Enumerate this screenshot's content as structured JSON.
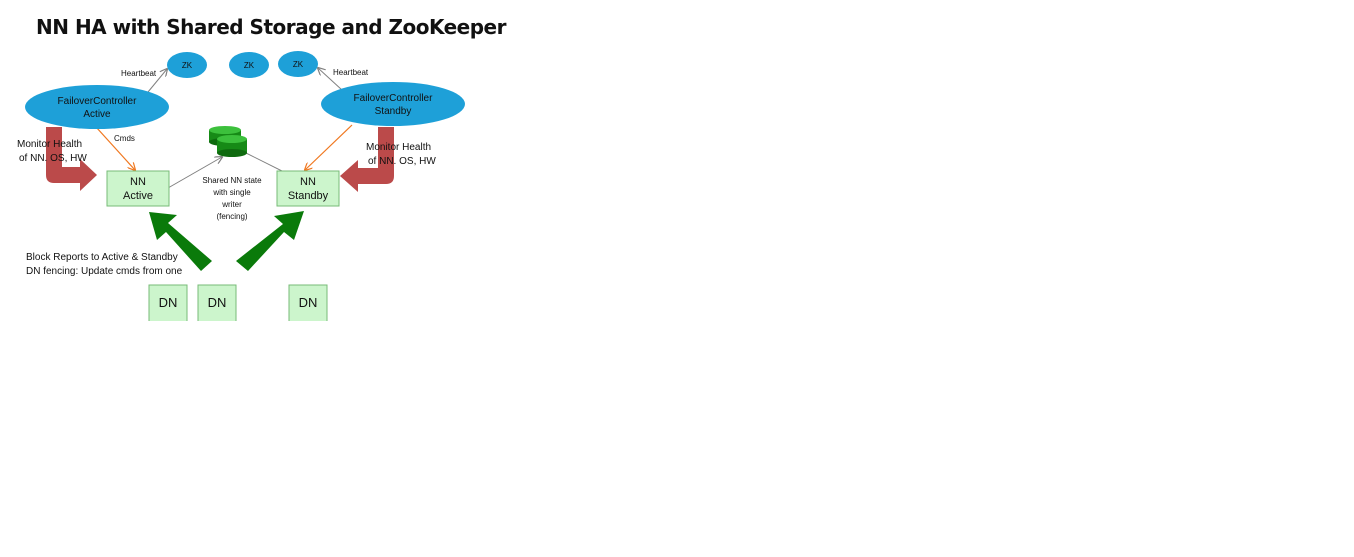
{
  "title": "NN HA with Shared Storage and ZooKeeper",
  "colors": {
    "ellipse_fill": "#1ea0d8",
    "box_fill": "#ccf5cc",
    "box_border": "#77bb77",
    "orange_arrow": "#f07820",
    "gray_arrow": "#808080",
    "red_arrow": "#bb4a4a",
    "green_arrow": "#0a7a0a",
    "storage": "#168a16"
  },
  "zk_nodes": [
    {
      "label": "ZK"
    },
    {
      "label": "ZK"
    },
    {
      "label": "ZK"
    }
  ],
  "failover_active": {
    "line1": "FailoverController",
    "line2": "Active"
  },
  "failover_standby": {
    "line1": "FailoverController",
    "line2": "Standby"
  },
  "heartbeat_left": "Heartbeat",
  "heartbeat_right": "Heartbeat",
  "cmds_label": "Cmds",
  "monitor_left": {
    "line1": "Monitor Health",
    "line2": "of NN. OS, HW"
  },
  "monitor_right": {
    "line1": "Monitor Health",
    "line2": "of NN. OS, HW"
  },
  "nn_active": {
    "line1": "NN",
    "line2": "Active"
  },
  "nn_standby": {
    "line1": "NN",
    "line2": "Standby"
  },
  "shared_state": {
    "line1": "Shared NN state",
    "line2": "with single",
    "line3": "writer",
    "line4": "(fencing)"
  },
  "block_reports": {
    "line1": "Block Reports to Active & Standby",
    "line2": "DN fencing: Update cmds from one"
  },
  "dn_nodes": [
    {
      "label": "DN"
    },
    {
      "label": "DN"
    },
    {
      "label": "DN"
    }
  ]
}
